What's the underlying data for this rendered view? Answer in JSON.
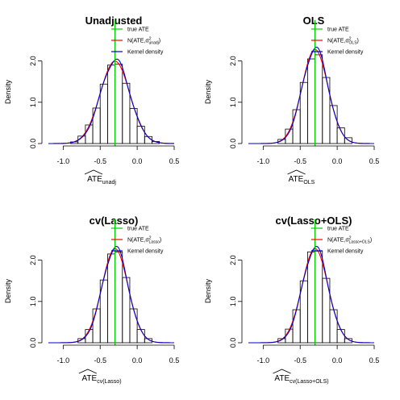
{
  "colors": {
    "true_ate": "#00cc00",
    "normal": "#ff0000",
    "kernel": "#0000cc",
    "bars": "#000000"
  },
  "chart_data": [
    {
      "type": "bar",
      "title": "Unadjusted",
      "ylabel": "Density",
      "xlabel_main": "ATE",
      "xlabel_sub": "unadj",
      "xlim": [
        -1.2,
        0.5
      ],
      "ylim": [
        0,
        2.5
      ],
      "xticks": [
        "-1.0",
        "-0.5",
        "0.0",
        "0.5"
      ],
      "yticks": [
        "0.0",
        "1.0",
        "2.0"
      ],
      "true_ate": -0.3,
      "bin_edges": [
        -0.9,
        -0.8,
        -0.7,
        -0.6,
        -0.5,
        -0.4,
        -0.3,
        -0.2,
        -0.1,
        0.0,
        0.1,
        0.2,
        0.3
      ],
      "density": [
        0.04,
        0.18,
        0.45,
        0.86,
        1.44,
        1.9,
        1.92,
        1.46,
        0.85,
        0.42,
        0.17,
        0.05
      ],
      "normal": {
        "mean": -0.3,
        "sd": 0.2
      },
      "legend": [
        "true ATE",
        "N(ATE,σ²unadj)",
        "Kernel density"
      ],
      "legend_position": "top-right"
    },
    {
      "type": "bar",
      "title": "OLS",
      "ylabel": "Density",
      "xlabel_main": "ATE",
      "xlabel_sub": "OLS",
      "xlim": [
        -1.2,
        0.5
      ],
      "ylim": [
        0,
        2.5
      ],
      "xticks": [
        "-1.0",
        "-0.5",
        "0.0",
        "0.5"
      ],
      "yticks": [
        "0.0",
        "1.0",
        "2.0"
      ],
      "true_ate": -0.3,
      "bin_edges": [
        -0.8,
        -0.7,
        -0.6,
        -0.5,
        -0.4,
        -0.3,
        -0.2,
        -0.1,
        0.0,
        0.1,
        0.2
      ],
      "density": [
        0.1,
        0.35,
        0.82,
        1.48,
        2.05,
        2.15,
        1.6,
        0.92,
        0.38,
        0.14
      ],
      "normal": {
        "mean": -0.3,
        "sd": 0.175
      },
      "legend": [
        "true ATE",
        "N(ATE,σ²OLS)",
        "Kernel density"
      ],
      "legend_position": "top-right"
    },
    {
      "type": "bar",
      "title": "cv(Lasso)",
      "ylabel": "Density",
      "xlabel_main": "ATE",
      "xlabel_sub": "cv(Lasso)",
      "xlim": [
        -1.2,
        0.5
      ],
      "ylim": [
        0,
        2.5
      ],
      "xticks": [
        "-1.0",
        "-0.5",
        "0.0",
        "0.5"
      ],
      "yticks": [
        "0.0",
        "1.0",
        "2.0"
      ],
      "true_ate": -0.3,
      "bin_edges": [
        -0.8,
        -0.7,
        -0.6,
        -0.5,
        -0.4,
        -0.3,
        -0.2,
        -0.1,
        0.0,
        0.1,
        0.2
      ],
      "density": [
        0.1,
        0.32,
        0.82,
        1.52,
        2.15,
        2.2,
        1.58,
        0.82,
        0.32,
        0.1
      ],
      "normal": {
        "mean": -0.3,
        "sd": 0.175
      },
      "legend": [
        "true ATE",
        "N(ATE,σ²Lasso)",
        "Kernel density"
      ],
      "legend_position": "top-right"
    },
    {
      "type": "bar",
      "title": "cv(Lasso+OLS)",
      "ylabel": "Density",
      "xlabel_main": "ATE",
      "xlabel_sub": "cv(Lasso+OLS)",
      "xlim": [
        -1.2,
        0.5
      ],
      "ylim": [
        0,
        2.5
      ],
      "xticks": [
        "-1.0",
        "-0.5",
        "0.0",
        "0.5"
      ],
      "yticks": [
        "0.0",
        "1.0",
        "2.0"
      ],
      "true_ate": -0.3,
      "bin_edges": [
        -0.8,
        -0.7,
        -0.6,
        -0.5,
        -0.4,
        -0.3,
        -0.2,
        -0.1,
        0.0,
        0.1,
        0.2
      ],
      "density": [
        0.1,
        0.33,
        0.8,
        1.5,
        2.2,
        2.22,
        1.56,
        0.8,
        0.32,
        0.1
      ],
      "normal": {
        "mean": -0.3,
        "sd": 0.175
      },
      "legend": [
        "true ATE",
        "N(ATE,σ²Lasso+OLS)",
        "Kernel density"
      ],
      "legend_position": "top-right"
    }
  ]
}
